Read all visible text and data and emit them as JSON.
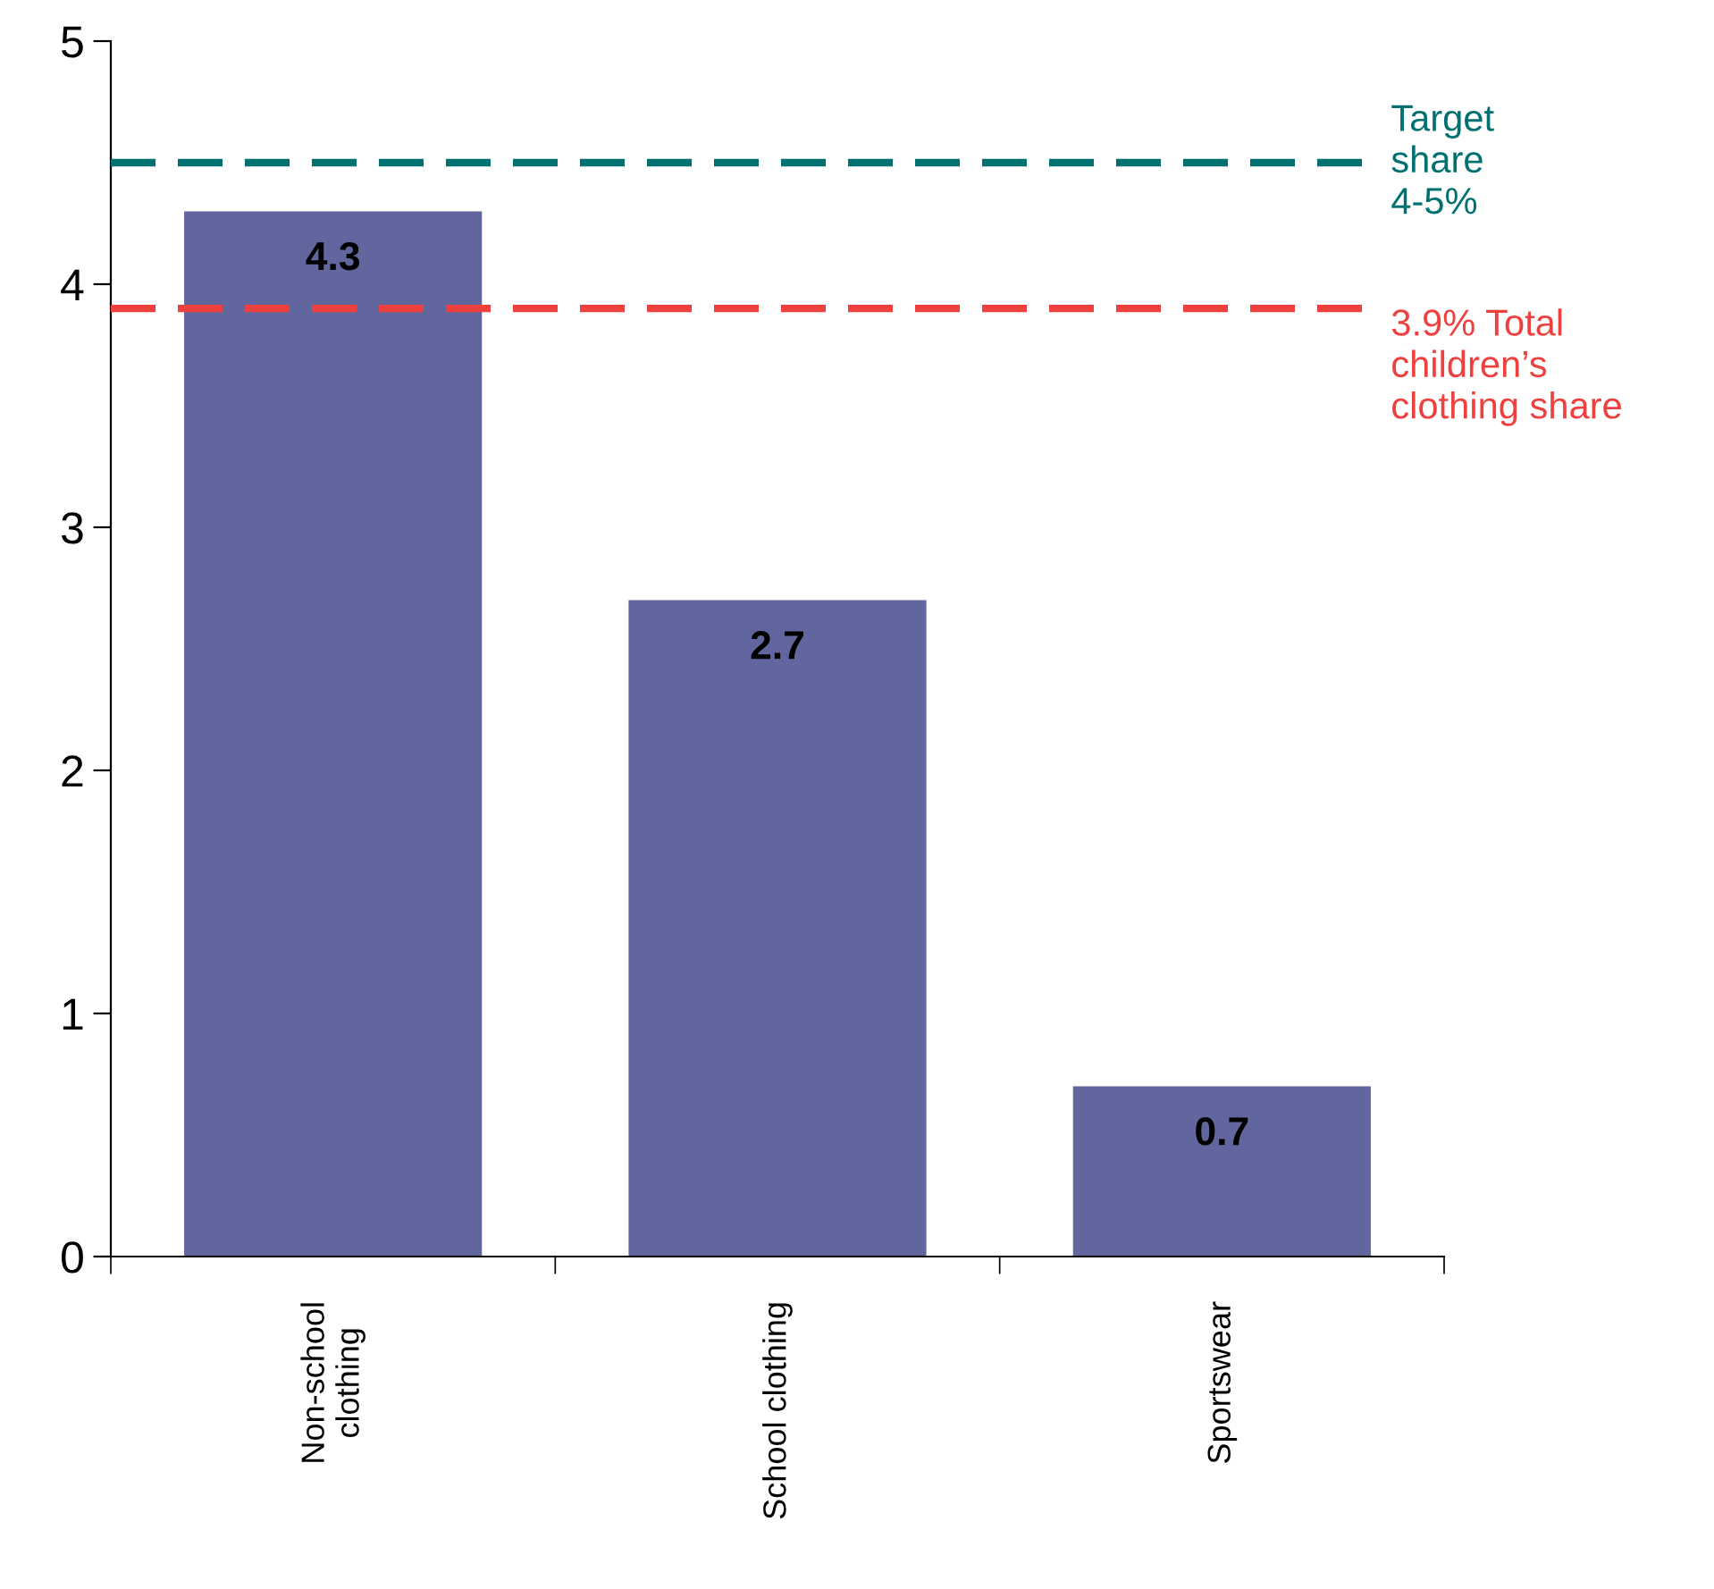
{
  "chart_data": {
    "type": "bar",
    "categories": [
      "Non-school\nclothing",
      "School clothing",
      "Sportswear"
    ],
    "values": [
      4.3,
      2.7,
      0.7
    ],
    "color": "#62669e",
    "ylim": [
      0,
      5
    ],
    "yticks": [
      0,
      1,
      2,
      3,
      4,
      5
    ],
    "data_labels": true,
    "grid": false,
    "ref_lines": [
      {
        "axis": "y",
        "value": 4.5,
        "label": "Target\nshare\n4-5%",
        "color": "#007070",
        "line_style": "dashed"
      },
      {
        "axis": "y",
        "value": 3.9,
        "label": "3.9% Total\nchildren’s\nclothing share",
        "color": "#ef4040",
        "line_style": "dashed"
      }
    ]
  }
}
